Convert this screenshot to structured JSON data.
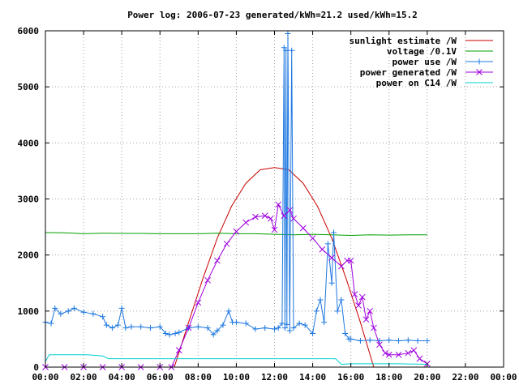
{
  "chart_data": {
    "type": "line",
    "title": "Power log: 2006-07-23 generated/kWh=21.2 used/kWh=15.2",
    "xlabel": "",
    "ylabel": "",
    "xlim": [
      0,
      24
    ],
    "ylim": [
      0,
      6000
    ],
    "x_ticks": [
      "00:00",
      "02:00",
      "04:00",
      "06:00",
      "08:00",
      "10:00",
      "12:00",
      "14:00",
      "16:00",
      "18:00",
      "20:00",
      "22:00",
      "00:00"
    ],
    "y_ticks": [
      "0",
      "1000",
      "2000",
      "3000",
      "4000",
      "5000",
      "6000"
    ],
    "grid": true,
    "legend_position": "top-right",
    "series": [
      {
        "name": "sunlight estimate /W",
        "color": "#cc0000",
        "marker": "none",
        "x": [
          6.75,
          7.5,
          8.25,
          9.0,
          9.75,
          10.5,
          11.25,
          12.0,
          12.75,
          13.5,
          14.25,
          15.0,
          15.75,
          16.5,
          17.2
        ],
        "y": [
          0,
          800,
          1580,
          2300,
          2870,
          3280,
          3520,
          3560,
          3520,
          3280,
          2870,
          2300,
          1580,
          800,
          0
        ]
      },
      {
        "name": "voltage /0.1V",
        "color": "#00a000",
        "marker": "none",
        "x": [
          0,
          1,
          2,
          3,
          4,
          5,
          6,
          7,
          8,
          9,
          10,
          11,
          12,
          13,
          14,
          15,
          16,
          17,
          18,
          19,
          20
        ],
        "y": [
          2400,
          2395,
          2380,
          2390,
          2385,
          2385,
          2380,
          2380,
          2380,
          2390,
          2380,
          2380,
          2370,
          2360,
          2370,
          2360,
          2350,
          2360,
          2355,
          2360,
          2360
        ]
      },
      {
        "name": "power use /W",
        "color": "#1e78e0",
        "marker": "plus",
        "x": [
          0.0,
          0.3,
          0.5,
          0.8,
          1.2,
          1.5,
          2.0,
          2.5,
          3.0,
          3.2,
          3.5,
          3.8,
          4.0,
          4.2,
          4.5,
          5.0,
          5.5,
          6.0,
          6.3,
          6.5,
          6.8,
          7.0,
          7.5,
          8.0,
          8.5,
          8.8,
          9.0,
          9.3,
          9.6,
          9.8,
          10.0,
          10.5,
          11.0,
          11.5,
          12.0,
          12.2,
          12.4,
          12.5,
          12.55,
          12.6,
          12.65,
          12.7,
          12.8,
          12.9,
          13.0,
          13.3,
          13.6,
          14.0,
          14.2,
          14.4,
          14.6,
          14.8,
          15.0,
          15.1,
          15.3,
          15.5,
          15.7,
          15.9,
          16.0,
          16.5,
          17.0,
          17.5,
          18.0,
          18.5,
          19.0,
          19.5,
          20.0
        ],
        "y": [
          800,
          780,
          1050,
          950,
          1000,
          1050,
          980,
          950,
          900,
          750,
          700,
          750,
          1050,
          700,
          720,
          720,
          700,
          720,
          600,
          580,
          600,
          620,
          700,
          720,
          700,
          580,
          650,
          750,
          1000,
          800,
          800,
          780,
          680,
          700,
          680,
          700,
          780,
          5700,
          700,
          5650,
          760,
          5950,
          650,
          5650,
          700,
          780,
          750,
          600,
          1000,
          1200,
          800,
          2200,
          1500,
          2400,
          1000,
          1200,
          600,
          500,
          500,
          470,
          480,
          470,
          480,
          470,
          480,
          470,
          470
        ]
      },
      {
        "name": "power generated /W",
        "color": "#a000e0",
        "marker": "cross",
        "x": [
          0,
          1,
          2,
          3,
          4,
          5,
          6,
          6.6,
          7.0,
          7.5,
          8.0,
          8.5,
          9.0,
          9.5,
          10.0,
          10.5,
          11.0,
          11.5,
          11.8,
          12.0,
          12.2,
          12.5,
          12.8,
          13.0,
          13.5,
          14.0,
          14.5,
          15.0,
          15.5,
          15.8,
          16.0,
          16.2,
          16.4,
          16.6,
          16.8,
          17.0,
          17.2,
          17.5,
          17.8,
          18.0,
          18.5,
          19.0,
          19.3,
          19.6,
          20.0
        ],
        "y": [
          0,
          0,
          0,
          0,
          0,
          0,
          0,
          0,
          300,
          700,
          1150,
          1550,
          1900,
          2200,
          2420,
          2580,
          2680,
          2700,
          2650,
          2450,
          2900,
          2700,
          2800,
          2650,
          2480,
          2300,
          2100,
          1950,
          1800,
          1900,
          1900,
          1300,
          1100,
          1250,
          850,
          1000,
          700,
          400,
          250,
          220,
          220,
          250,
          300,
          150,
          60
        ]
      },
      {
        "name": "power on C14 /W",
        "color": "#00d0d0",
        "marker": "none",
        "x": [
          0,
          0.2,
          2.2,
          3.0,
          3.3,
          6.5,
          7.5,
          10.5,
          11.0,
          15.2,
          15.5,
          16.0,
          18.5,
          20.0
        ],
        "y": [
          100,
          220,
          220,
          200,
          150,
          150,
          150,
          150,
          150,
          150,
          50,
          60,
          60,
          50
        ]
      }
    ]
  }
}
